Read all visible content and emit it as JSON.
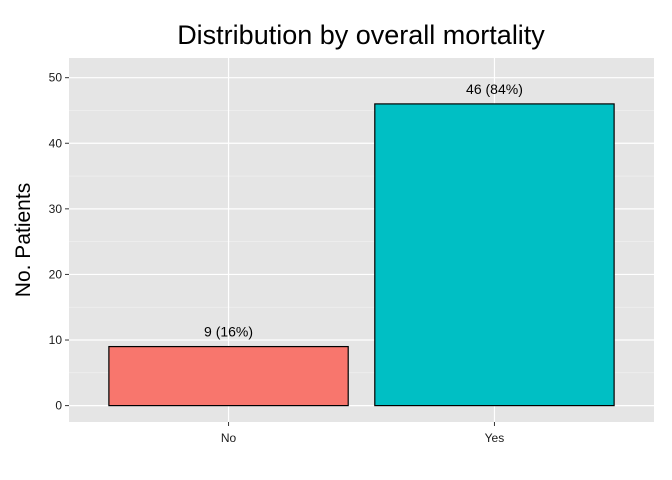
{
  "chart_data": {
    "type": "bar",
    "title": "Distribution by overall mortality",
    "xlabel": "",
    "ylabel": "No. Patients",
    "categories": [
      "No",
      "Yes"
    ],
    "values": [
      9,
      46
    ],
    "data_labels": [
      "9 (16%)",
      "46 (84%)"
    ],
    "ylim": [
      -2.5,
      53
    ],
    "yticks": [
      0,
      10,
      20,
      30,
      40,
      50
    ],
    "ytick_labels": [
      "0",
      "10",
      "20",
      "30",
      "40",
      "50"
    ],
    "grid": true,
    "legend": "none",
    "colors": [
      "#F8766D",
      "#00BFC4"
    ],
    "panel_background": "#E5E5E5",
    "grid_color": "#FFFFFF"
  }
}
